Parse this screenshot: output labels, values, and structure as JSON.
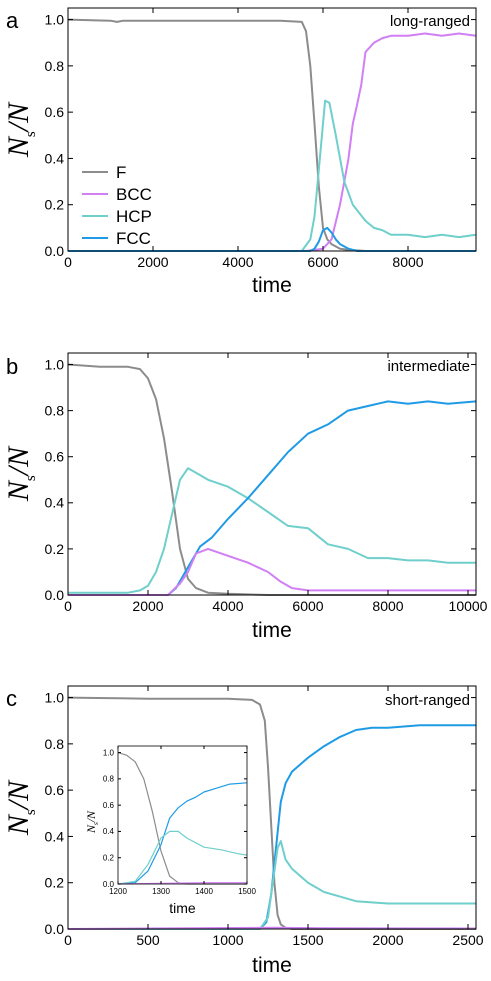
{
  "chart_data": [
    {
      "type": "line",
      "panel_label": "a",
      "annotation": "long-ranged",
      "xlabel": "time",
      "ylabel": {
        "main": "N",
        "sub": "s",
        "tail": "/N"
      },
      "xlim": [
        0,
        9600
      ],
      "ylim": [
        0,
        1.05
      ],
      "xticks": [
        0,
        2000,
        4000,
        6000,
        8000
      ],
      "yticks": [
        "0.0",
        "0.2",
        "0.4",
        "0.6",
        "0.8",
        "1.0"
      ],
      "legend": {
        "placement": "middle-left",
        "entries": [
          "F",
          "BCC",
          "HCP",
          "FCC"
        ]
      },
      "series": [
        {
          "name": "F",
          "color": "#8c8c8c",
          "x": [
            0,
            1000,
            1150,
            1300,
            2000,
            3000,
            4000,
            5000,
            5500,
            5600,
            5700,
            5800,
            5900,
            6000,
            6100,
            6200,
            6400,
            6600,
            7000,
            9600
          ],
          "y": [
            1.0,
            0.995,
            0.99,
            0.995,
            0.995,
            0.995,
            0.995,
            0.995,
            0.99,
            0.95,
            0.8,
            0.55,
            0.28,
            0.1,
            0.05,
            0.03,
            0.01,
            0.005,
            0.0,
            0.0
          ]
        },
        {
          "name": "BCC",
          "color": "#d17ff5",
          "x": [
            0,
            5600,
            6000,
            6200,
            6400,
            6500,
            6600,
            6700,
            6800,
            6900,
            7000,
            7200,
            7400,
            7600,
            8000,
            8400,
            8800,
            9200,
            9600
          ],
          "y": [
            0,
            0,
            0.01,
            0.05,
            0.2,
            0.3,
            0.4,
            0.55,
            0.63,
            0.72,
            0.86,
            0.9,
            0.92,
            0.93,
            0.93,
            0.94,
            0.93,
            0.94,
            0.93
          ]
        },
        {
          "name": "HCP",
          "color": "#6fcfcb",
          "x": [
            0,
            5500,
            5700,
            5800,
            5900,
            6000,
            6050,
            6150,
            6300,
            6500,
            6700,
            7000,
            7200,
            7400,
            7600,
            8000,
            8400,
            8800,
            9200,
            9600
          ],
          "y": [
            0,
            0,
            0.05,
            0.15,
            0.35,
            0.55,
            0.65,
            0.64,
            0.5,
            0.3,
            0.2,
            0.13,
            0.1,
            0.09,
            0.07,
            0.07,
            0.06,
            0.07,
            0.06,
            0.07
          ]
        },
        {
          "name": "FCC",
          "color": "#1f9be6",
          "x": [
            0,
            5700,
            5800,
            5900,
            6000,
            6100,
            6200,
            6300,
            6400,
            6600,
            6800,
            9600
          ],
          "y": [
            0,
            0,
            0.01,
            0.04,
            0.09,
            0.1,
            0.08,
            0.05,
            0.03,
            0.01,
            0.0,
            0.0
          ]
        }
      ]
    },
    {
      "type": "line",
      "panel_label": "b",
      "annotation": "intermediate",
      "xlabel": "time",
      "ylabel": {
        "main": "N",
        "sub": "s",
        "tail": "/N"
      },
      "xlim": [
        0,
        10200
      ],
      "ylim": [
        0,
        1.05
      ],
      "xticks": [
        0,
        2000,
        4000,
        6000,
        8000,
        10000
      ],
      "yticks": [
        "0.0",
        "0.2",
        "0.4",
        "0.6",
        "0.8",
        "1.0"
      ],
      "series": [
        {
          "name": "F",
          "color": "#8c8c8c",
          "x": [
            0,
            800,
            1500,
            1800,
            2000,
            2200,
            2400,
            2600,
            2800,
            3000,
            3200,
            3500,
            4000,
            5000,
            10200
          ],
          "y": [
            1.0,
            0.99,
            0.99,
            0.98,
            0.94,
            0.85,
            0.68,
            0.45,
            0.2,
            0.07,
            0.03,
            0.01,
            0.005,
            0.0,
            0.0
          ]
        },
        {
          "name": "HCP",
          "color": "#6fcfcb",
          "x": [
            0,
            1500,
            1800,
            2000,
            2200,
            2400,
            2600,
            2800,
            3000,
            3200,
            3500,
            4000,
            4500,
            5000,
            5500,
            6000,
            6500,
            7000,
            7500,
            8000,
            8500,
            9000,
            9500,
            10200
          ],
          "y": [
            0.01,
            0.01,
            0.02,
            0.04,
            0.1,
            0.2,
            0.35,
            0.5,
            0.55,
            0.53,
            0.5,
            0.47,
            0.42,
            0.36,
            0.3,
            0.29,
            0.22,
            0.2,
            0.16,
            0.16,
            0.15,
            0.15,
            0.14,
            0.14
          ]
        },
        {
          "name": "FCC",
          "color": "#1f9be6",
          "x": [
            0,
            2500,
            2700,
            3000,
            3300,
            3600,
            4000,
            4500,
            5000,
            5500,
            6000,
            6500,
            7000,
            7500,
            8000,
            8500,
            9000,
            9500,
            10200
          ],
          "y": [
            0,
            0,
            0.03,
            0.12,
            0.21,
            0.25,
            0.33,
            0.42,
            0.52,
            0.62,
            0.7,
            0.74,
            0.8,
            0.82,
            0.84,
            0.83,
            0.84,
            0.83,
            0.84
          ]
        },
        {
          "name": "BCC",
          "color": "#d17ff5",
          "x": [
            0,
            2500,
            2800,
            3000,
            3200,
            3500,
            4000,
            4500,
            5000,
            5300,
            5600,
            6000,
            7000,
            8000,
            9000,
            10200
          ],
          "y": [
            0,
            0,
            0.05,
            0.1,
            0.18,
            0.2,
            0.17,
            0.14,
            0.1,
            0.06,
            0.03,
            0.02,
            0.02,
            0.02,
            0.02,
            0.02
          ]
        }
      ]
    },
    {
      "type": "line",
      "panel_label": "c",
      "annotation": "short-ranged",
      "xlabel": "time",
      "ylabel": {
        "main": "N",
        "sub": "s",
        "tail": "/N"
      },
      "xlim": [
        0,
        2550
      ],
      "ylim": [
        0,
        1.05
      ],
      "xticks": [
        0,
        500,
        1000,
        1500,
        2000,
        2500
      ],
      "yticks": [
        "0.0",
        "0.2",
        "0.4",
        "0.6",
        "0.8",
        "1.0"
      ],
      "series": [
        {
          "name": "F",
          "color": "#8c8c8c",
          "x": [
            0,
            500,
            1000,
            1150,
            1200,
            1230,
            1250,
            1270,
            1290,
            1310,
            1330,
            1360,
            1400,
            2550
          ],
          "y": [
            1.0,
            0.995,
            0.995,
            0.99,
            0.97,
            0.9,
            0.7,
            0.45,
            0.2,
            0.06,
            0.02,
            0.005,
            0.0,
            0.0
          ]
        },
        {
          "name": "FCC",
          "color": "#1f9be6",
          "x": [
            0,
            1200,
            1240,
            1270,
            1300,
            1330,
            1360,
            1400,
            1500,
            1600,
            1700,
            1800,
            1900,
            2000,
            2200,
            2400,
            2550
          ],
          "y": [
            0,
            0,
            0.03,
            0.15,
            0.35,
            0.55,
            0.63,
            0.68,
            0.74,
            0.79,
            0.83,
            0.86,
            0.87,
            0.87,
            0.88,
            0.88,
            0.88
          ]
        },
        {
          "name": "HCP",
          "color": "#6fcfcb",
          "x": [
            0,
            1200,
            1250,
            1280,
            1310,
            1330,
            1360,
            1400,
            1500,
            1600,
            1700,
            1800,
            2000,
            2200,
            2400,
            2550
          ],
          "y": [
            0,
            0,
            0.05,
            0.2,
            0.35,
            0.38,
            0.3,
            0.26,
            0.2,
            0.16,
            0.14,
            0.12,
            0.11,
            0.11,
            0.11,
            0.11
          ]
        },
        {
          "name": "BCC",
          "color": "#d17ff5",
          "x": [
            0,
            1300,
            1600,
            2550
          ],
          "y": [
            0,
            0.005,
            0.003,
            0.002
          ]
        }
      ],
      "inset": {
        "xlabel": "time",
        "ylabel": {
          "main": "N",
          "sub": "s",
          "tail": "/N"
        },
        "xlim": [
          1200,
          1500
        ],
        "ylim": [
          0,
          1.05
        ],
        "xticks": [
          1200,
          1300,
          1400,
          1500
        ],
        "yticks": [
          "0.0",
          "0.2",
          "0.4",
          "0.6",
          "0.8",
          "1.0"
        ],
        "series": [
          {
            "name": "F",
            "color": "#8c8c8c",
            "x": [
              1200,
              1220,
              1240,
              1260,
              1280,
              1300,
              1320,
              1340,
              1360,
              1400,
              1500
            ],
            "y": [
              1.0,
              0.98,
              0.93,
              0.8,
              0.55,
              0.25,
              0.06,
              0.01,
              0.0,
              0.0,
              0.0
            ]
          },
          {
            "name": "FCC",
            "color": "#1f9be6",
            "x": [
              1200,
              1240,
              1270,
              1300,
              1320,
              1340,
              1360,
              1380,
              1400,
              1430,
              1460,
              1500
            ],
            "y": [
              0,
              0.01,
              0.1,
              0.3,
              0.5,
              0.58,
              0.63,
              0.66,
              0.7,
              0.73,
              0.76,
              0.77
            ]
          },
          {
            "name": "HCP",
            "color": "#6fcfcb",
            "x": [
              1200,
              1240,
              1270,
              1300,
              1320,
              1340,
              1360,
              1400,
              1440,
              1480,
              1500
            ],
            "y": [
              0,
              0.02,
              0.15,
              0.35,
              0.4,
              0.4,
              0.35,
              0.28,
              0.26,
              0.23,
              0.22
            ]
          },
          {
            "name": "BCC",
            "color": "#d17ff5",
            "x": [
              1200,
              1300,
              1400,
              1500
            ],
            "y": [
              0,
              0.005,
              0.01,
              0.01
            ]
          }
        ]
      }
    }
  ]
}
